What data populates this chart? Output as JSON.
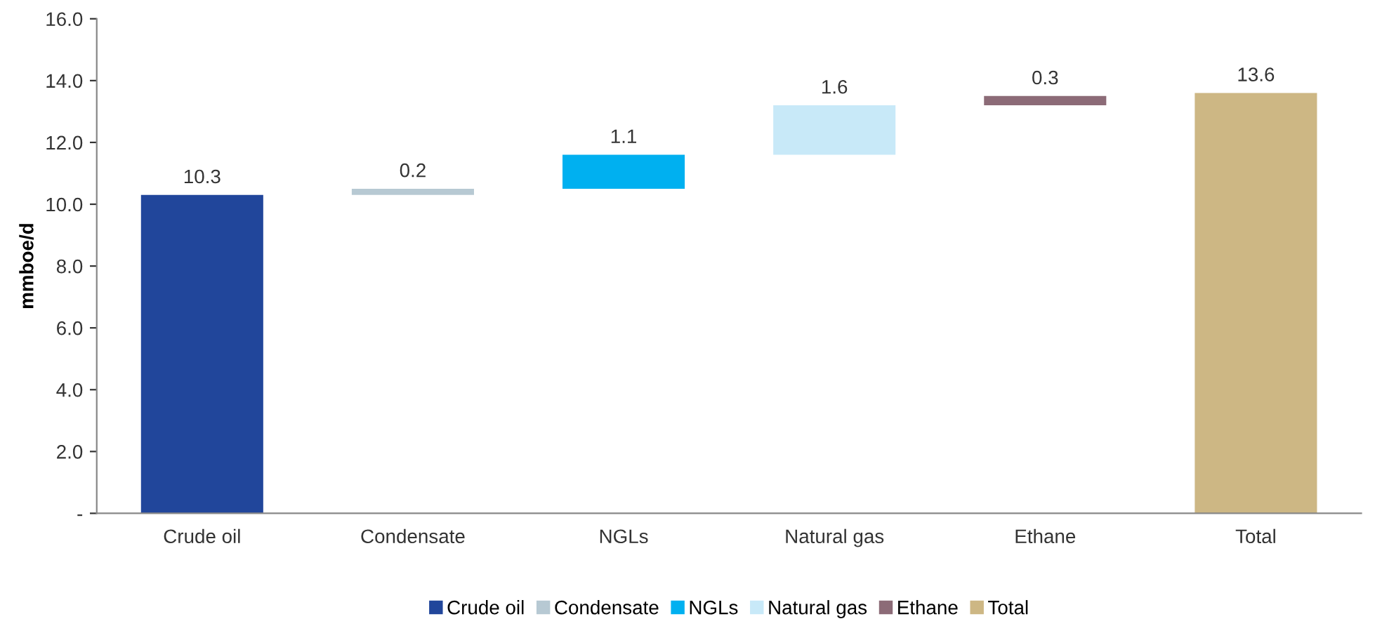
{
  "chart_data": {
    "type": "bar",
    "ylabel": "mmboe/d",
    "categories": [
      "Crude oil",
      "Condensate",
      "NGLs",
      "Natural gas",
      "Ethane",
      "Total"
    ],
    "series": [
      {
        "name": "Crude oil",
        "color": "#21469b",
        "values": [
          10.3,
          null,
          null,
          null,
          null,
          null
        ],
        "base": [
          0,
          null,
          null,
          null,
          null,
          null
        ]
      },
      {
        "name": "Condensate",
        "color": "#b7c9d3",
        "values": [
          null,
          0.2,
          null,
          null,
          null,
          null
        ],
        "base": [
          null,
          10.3,
          null,
          null,
          null,
          null
        ]
      },
      {
        "name": "NGLs",
        "color": "#00b0f0",
        "values": [
          null,
          null,
          1.1,
          null,
          null,
          null
        ],
        "base": [
          null,
          null,
          10.5,
          null,
          null,
          null
        ]
      },
      {
        "name": "Natural gas",
        "color": "#c8e9f8",
        "values": [
          null,
          null,
          null,
          1.6,
          null,
          null
        ],
        "base": [
          null,
          null,
          null,
          11.6,
          null,
          null
        ]
      },
      {
        "name": "Ethane",
        "color": "#8c6b77",
        "values": [
          null,
          null,
          null,
          null,
          0.3,
          null
        ],
        "base": [
          null,
          null,
          null,
          null,
          13.2,
          null
        ]
      },
      {
        "name": "Total",
        "color": "#cdb784",
        "values": [
          null,
          null,
          null,
          null,
          null,
          13.6
        ],
        "base": [
          null,
          null,
          null,
          null,
          null,
          0
        ]
      }
    ],
    "ylim": [
      0,
      16
    ],
    "yticks": [
      {
        "value": 0,
        "label": "-"
      },
      {
        "value": 2,
        "label": "2.0"
      },
      {
        "value": 4,
        "label": "4.0"
      },
      {
        "value": 6,
        "label": "6.0"
      },
      {
        "value": 8,
        "label": "8.0"
      },
      {
        "value": 10,
        "label": "10.0"
      },
      {
        "value": 12,
        "label": "12.0"
      },
      {
        "value": 14,
        "label": "14.0"
      },
      {
        "value": 16,
        "label": "16.0"
      }
    ],
    "data_labels": true,
    "grid": false,
    "legend": "bottom"
  }
}
